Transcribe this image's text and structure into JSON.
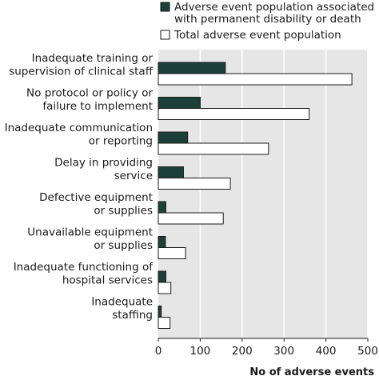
{
  "chart_data": {
    "type": "bar",
    "orientation": "horizontal",
    "categories": [
      [
        "Inadequate training or",
        "supervision of clinical staff"
      ],
      [
        "No protocol or policy or",
        "failure to implement"
      ],
      [
        "Inadequate communication",
        "or reporting"
      ],
      [
        "Delay in providing",
        "service"
      ],
      [
        "Defective equipment",
        "or supplies"
      ],
      [
        "Unavailable equipment",
        "or supplies"
      ],
      [
        "Inadequate functioning of",
        "hospital services"
      ],
      [
        "Inadequate",
        "staffing"
      ]
    ],
    "series": [
      {
        "name": [
          "Adverse event population associated",
          "with permanent disability or death"
        ],
        "color": "#1b4039",
        "values": [
          160,
          100,
          70,
          60,
          18,
          17,
          18,
          7
        ]
      },
      {
        "name": [
          "Total adverse event population"
        ],
        "color": "#ffffff",
        "values": [
          462,
          360,
          263,
          172,
          155,
          65,
          30,
          28
        ]
      }
    ],
    "xlabel": "No of adverse events",
    "xlim": [
      0,
      500
    ],
    "xticks": [
      0,
      100,
      200,
      300,
      400,
      500
    ],
    "grid": true,
    "legend": "top"
  }
}
